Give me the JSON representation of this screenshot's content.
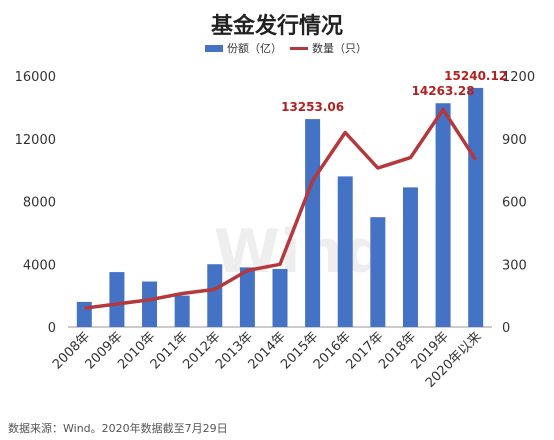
{
  "chart_data": {
    "type": "bar+line",
    "title": "基金发行情况",
    "categories": [
      "2008年",
      "2009年",
      "2010年",
      "2011年",
      "2012年",
      "2013年",
      "2014年",
      "2015年",
      "2016年",
      "2017年",
      "2018年",
      "2019年",
      "2020年以来"
    ],
    "series": [
      {
        "name": "份额（亿）",
        "type": "bar",
        "axis": "left",
        "color": "#4472c4",
        "values": [
          1600,
          3500,
          2900,
          2000,
          4000,
          3800,
          3700,
          13253.06,
          9600,
          7000,
          8900,
          14263.28,
          15240.12
        ]
      },
      {
        "name": "数量（只）",
        "type": "line",
        "axis": "right",
        "color": "#b5383c",
        "values": [
          90,
          110,
          130,
          160,
          180,
          270,
          300,
          700,
          930,
          760,
          810,
          1040,
          800
        ]
      }
    ],
    "y_left": {
      "ticks": [
        "0",
        "4000",
        "8000",
        "12000",
        "16000"
      ],
      "ylim": [
        0,
        16000
      ]
    },
    "y_right": {
      "ticks": [
        "0",
        "300",
        "600",
        "900",
        "1200"
      ],
      "ylim": [
        0,
        1200
      ]
    },
    "data_labels": [
      {
        "category_index": 7,
        "text": "13253.06"
      },
      {
        "category_index": 11,
        "text": "14263.28"
      },
      {
        "category_index": 12,
        "text": "15240.12"
      }
    ],
    "legend_position": "top-center",
    "grid": false
  },
  "watermark": "Wind",
  "source": "数据来源：Wind。2020年数据截至7月29日"
}
